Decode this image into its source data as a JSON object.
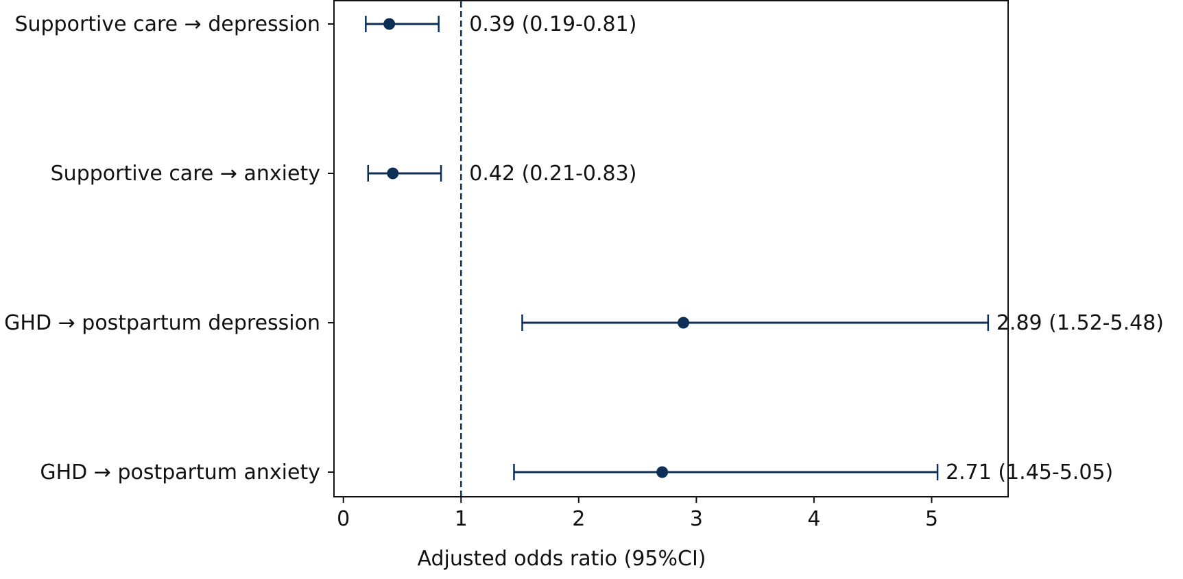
{
  "chart_data": {
    "type": "forest",
    "xlabel": "Adjusted odds ratio (95%CI)",
    "xlim": [
      -0.08,
      5.65
    ],
    "xticks": [
      0,
      1,
      2,
      3,
      4,
      5
    ],
    "reference_line": 1,
    "grid": false,
    "colors": {
      "marker": "#0d2f55",
      "reference_line": "#0d2f55",
      "axis": "#111111"
    },
    "rows": [
      {
        "label": "Supportive care → depression",
        "estimate": 0.39,
        "lower": 0.19,
        "upper": 0.81,
        "value_text": "0.39 (0.19-0.81)"
      },
      {
        "label": "Supportive care → anxiety",
        "estimate": 0.42,
        "lower": 0.21,
        "upper": 0.83,
        "value_text": "0.42 (0.21-0.83)"
      },
      {
        "label": "GHD → postpartum depression",
        "estimate": 2.89,
        "lower": 1.52,
        "upper": 5.48,
        "value_text": "2.89 (1.52-5.48)"
      },
      {
        "label": "GHD → postpartum anxiety",
        "estimate": 2.71,
        "lower": 1.45,
        "upper": 5.05,
        "value_text": "2.71 (1.45-5.05)"
      }
    ]
  }
}
